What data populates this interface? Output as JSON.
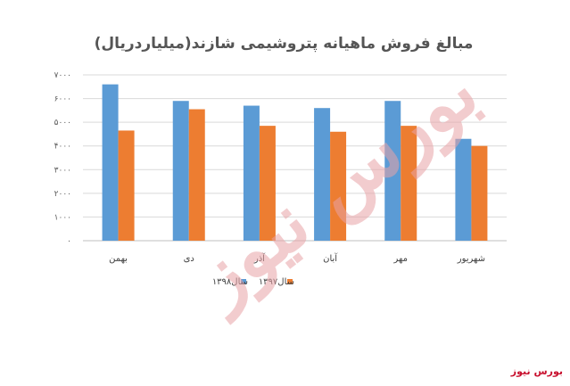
{
  "chart_data": {
    "type": "bar",
    "title": "مبالغ فروش ماهیانه پتروشیمی شازند(میلیاردریال)",
    "categories": [
      "شهریور",
      "مهر",
      "آبان",
      "آذر",
      "دی",
      "بهمن"
    ],
    "series": [
      {
        "name": "سال۱۳۹۸",
        "color": "#5b9bd5",
        "values": [
          4300,
          5900,
          5600,
          5700,
          5900,
          6600
        ]
      },
      {
        "name": "سال۱۳۹۷",
        "color": "#ed7d31",
        "values": [
          4000,
          4850,
          4600,
          4850,
          5550,
          4650
        ]
      }
    ],
    "ylim": [
      0,
      7000
    ],
    "yticks": [
      0,
      1000,
      2000,
      3000,
      4000,
      5000,
      6000,
      7000
    ],
    "ytick_labels": [
      "۰",
      "۱۰۰۰",
      "۲۰۰۰",
      "۳۰۰۰",
      "۴۰۰۰",
      "۵۰۰۰",
      "۶۰۰۰",
      "۷۰۰۰"
    ],
    "grid": true,
    "legend": "bottom"
  },
  "watermark": {
    "text": "بورس نیوز",
    "color": "#e9a3a7"
  },
  "footer": {
    "logo_text": "بورس نیوز",
    "color": "#c8102e"
  }
}
